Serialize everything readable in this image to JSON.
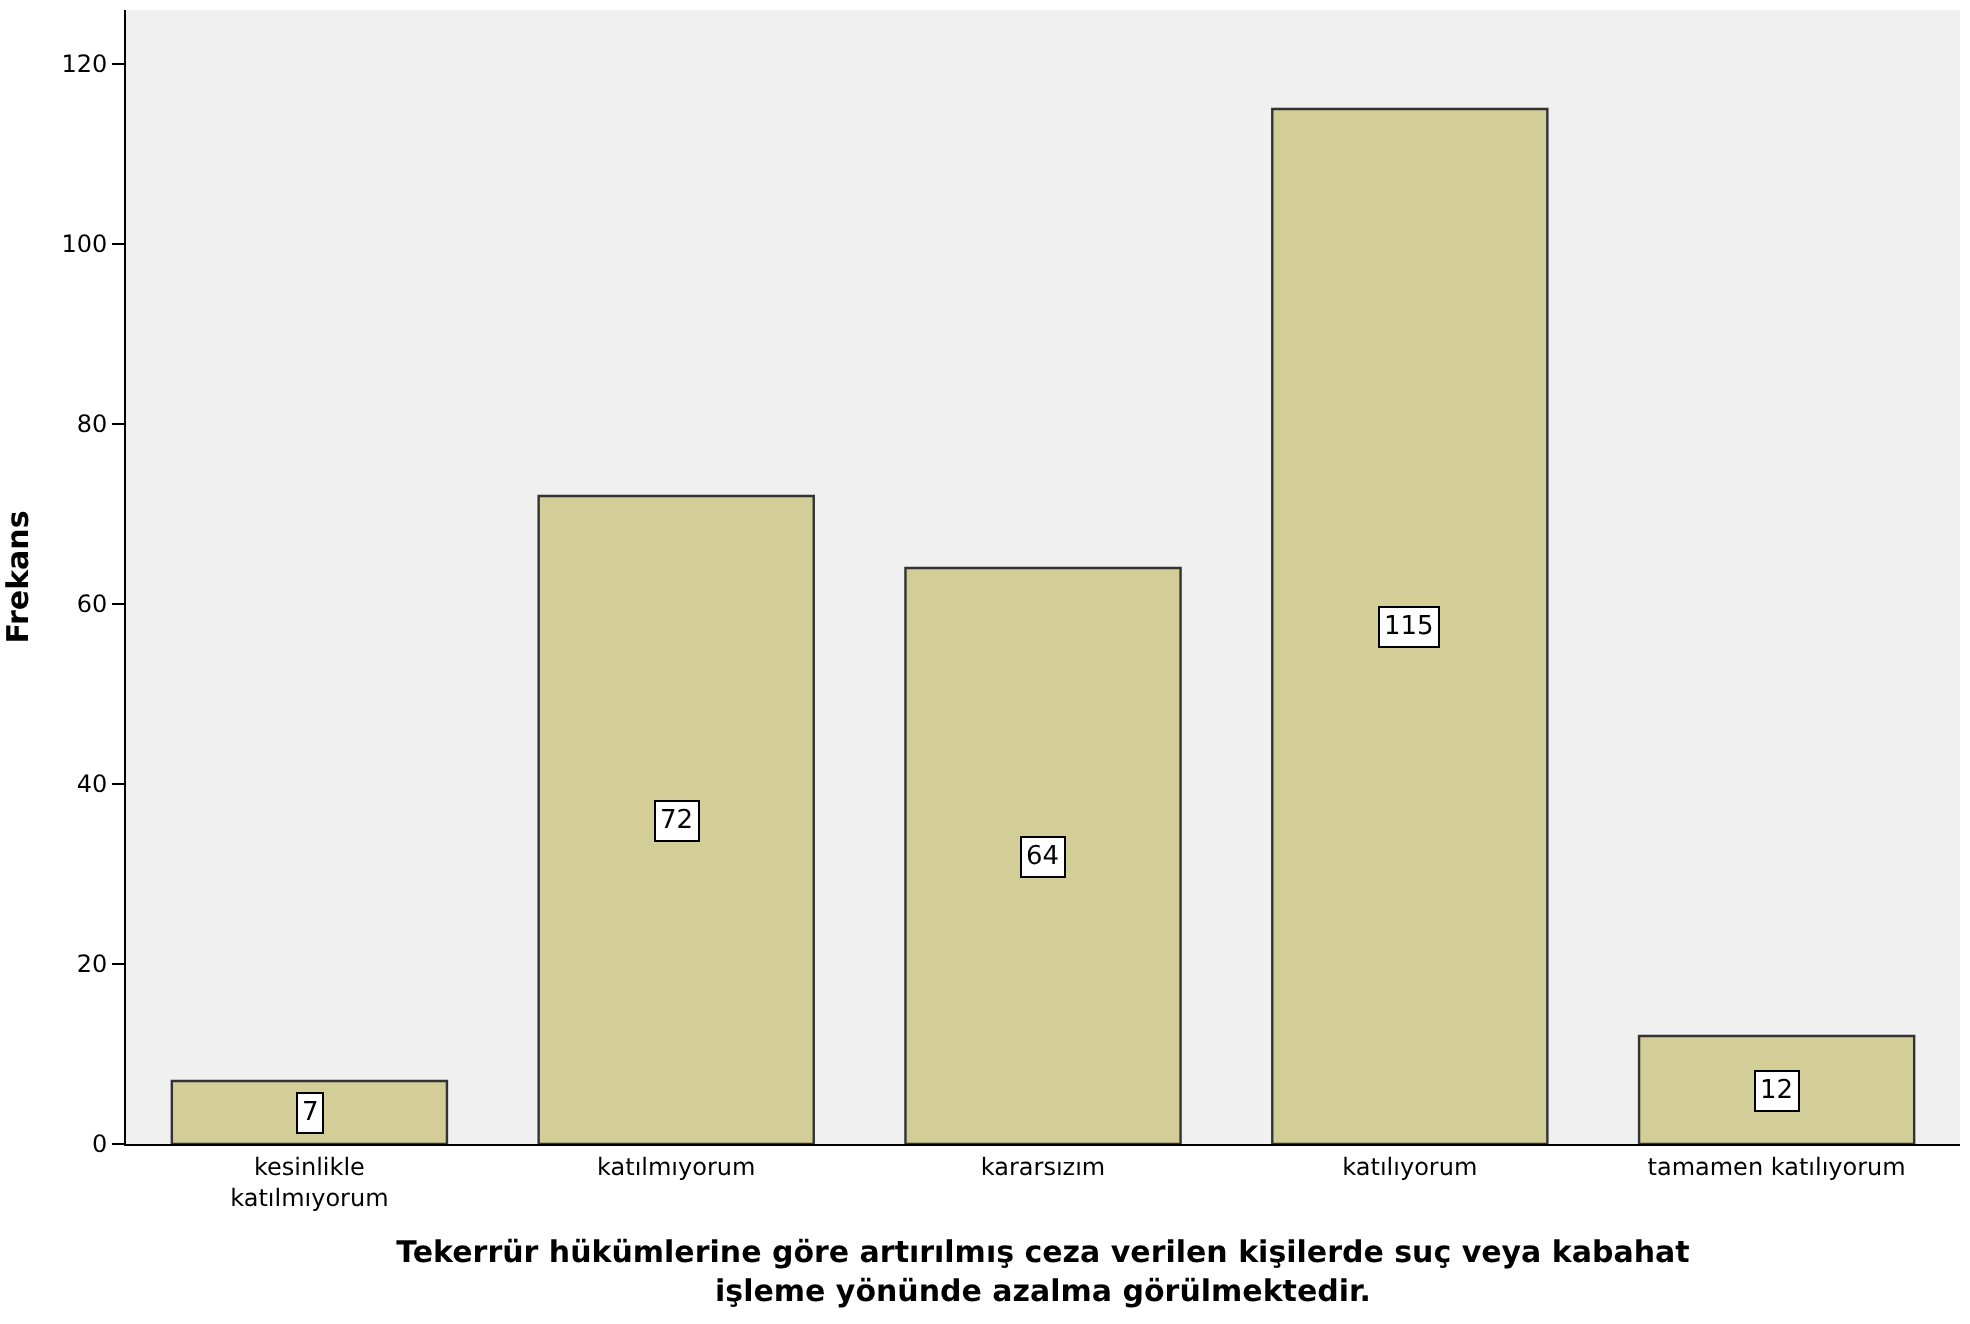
{
  "chart_data": {
    "type": "bar",
    "ylabel": "Frekans",
    "xlabel": "Tekerrür hükümlerine göre artırılmış ceza verilen kişilerde suç veya kabahat\nişleme yönünde azalma görülmektedir.",
    "categories": [
      "kesinlikle\nkatılmıyorum",
      "katılmıyorum",
      "kararsızım",
      "katılıyorum",
      "tamamen katılıyorum"
    ],
    "values": [
      7,
      72,
      64,
      115,
      12
    ],
    "color": "#d3ce97",
    "ylim": [
      0,
      126
    ],
    "yticks": [
      0,
      20,
      40,
      60,
      80,
      100,
      120
    ],
    "grid": false,
    "data_labels": true
  }
}
